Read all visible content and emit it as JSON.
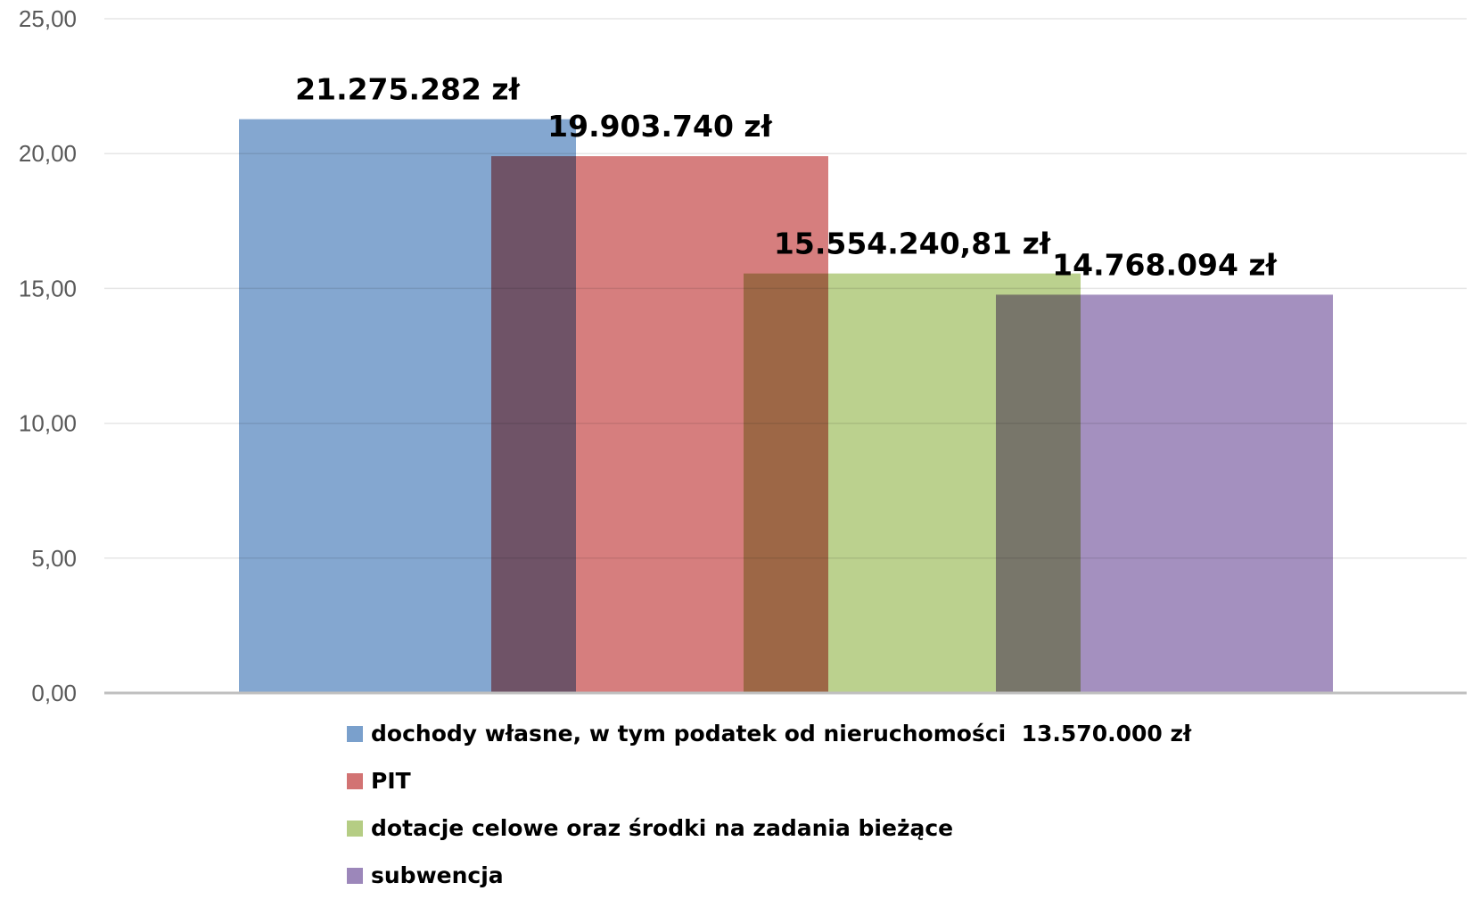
{
  "chart_data": {
    "type": "bar",
    "title": "",
    "xlabel": "",
    "ylabel": "",
    "ylim": [
      0,
      25
    ],
    "yticks": [
      "0,00",
      "5,00",
      "10,00",
      "15,00",
      "20,00",
      "25,00"
    ],
    "grid": true,
    "legend_position": "bottom",
    "series": [
      {
        "name": "dochody własne, w tym podatek od nieruchomości  13.570.000 zł",
        "value": 21.275282,
        "label": "21.275.282 zł",
        "color": "#7aa0cc"
      },
      {
        "name": "PIT",
        "value": 19.90374,
        "label": "19.903.740 zł",
        "color": "#d27373"
      },
      {
        "name": "dotacje celowe oraz środki na zadania bieżące",
        "value": 15.55424081,
        "label": "15.554.240,81 zł",
        "color": "#b5cd84"
      },
      {
        "name": "subwencja",
        "value": 14.768094,
        "label": "14.768.094 zł",
        "color": "#9c87ba"
      }
    ]
  }
}
